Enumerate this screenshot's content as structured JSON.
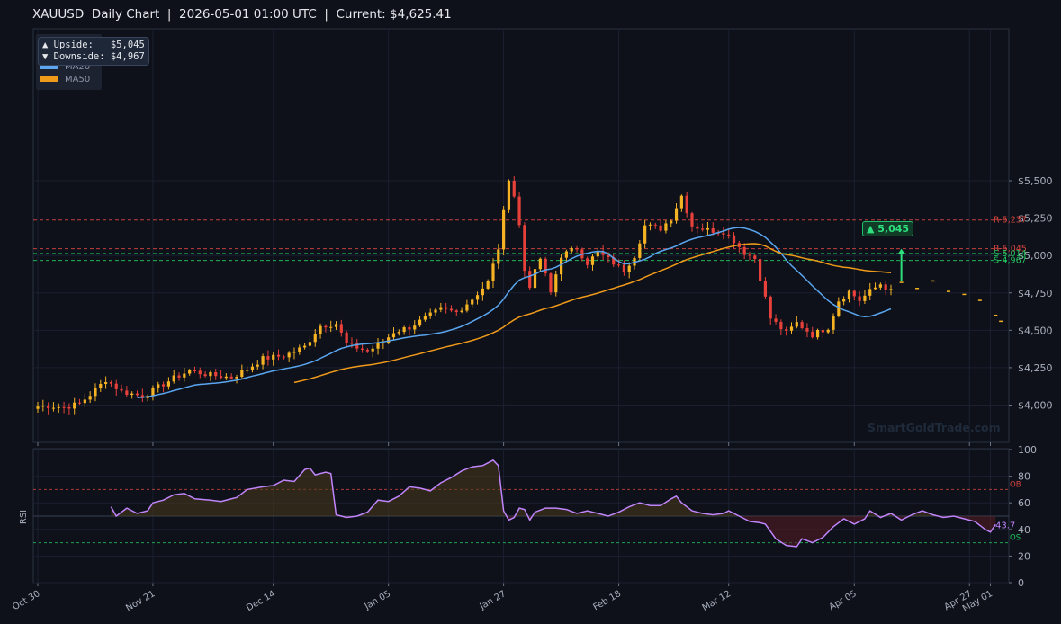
{
  "header": {
    "title": "XAUUSD  Daily Chart  |  2026-05-01 01:00 UTC  |  Current: $4,625.41"
  },
  "legend": {
    "ma20_label": "MA20",
    "ma50_label": "MA50"
  },
  "sr_box": {
    "upside": "▲ Upside:   $5,045",
    "downside": "▼ Downside: $4,967"
  },
  "watermark": "SmartGoldTrade.com",
  "target_badge": "▲ 5,045",
  "colors": {
    "bull": "#f5b324",
    "bear": "#e8403a",
    "ma20": "#5aa6f0",
    "ma50": "#f09a1a",
    "resistance": "#d6453f",
    "support": "#22c55e",
    "rsi": "#c084fc"
  },
  "chart_data": [
    {
      "type": "candlestick",
      "title": "XAUUSD Daily Chart",
      "ylabel": "",
      "ylim": [
        3830,
        5660
      ],
      "y_ticks": [
        4000,
        4250,
        4500,
        4750,
        5000,
        5250,
        5500
      ],
      "y_tick_labels": [
        "$4,000",
        "$4,250",
        "$4,500",
        "$4,750",
        "$5,000",
        "$5,250",
        "$5,500"
      ],
      "x_tick_labels": [
        "Oct 30",
        "Nov 21",
        "Dec 14",
        "Jan 05",
        "Jan 27",
        "Feb 18",
        "Mar 12",
        "Apr 05",
        "Apr 27",
        "May 01"
      ],
      "x_tick_days": [
        0,
        22,
        45,
        67,
        89,
        111,
        132,
        156,
        178,
        182
      ],
      "grid": true,
      "legend_position": "top-left",
      "levels": [
        {
          "label": "R-5,237",
          "value": 5237,
          "kind": "resistance"
        },
        {
          "label": "R-5,045",
          "value": 5045,
          "kind": "resistance"
        },
        {
          "label": "S-5,014",
          "value": 5014,
          "kind": "support"
        },
        {
          "label": "S-4,967",
          "value": 4967,
          "kind": "support"
        }
      ],
      "anchors": [
        [
          0,
          3990
        ],
        [
          2,
          3995
        ],
        [
          5,
          3985
        ],
        [
          8,
          4010
        ],
        [
          11,
          4100
        ],
        [
          13,
          4170
        ],
        [
          16,
          4090
        ],
        [
          20,
          4060
        ],
        [
          23,
          4120
        ],
        [
          26,
          4180
        ],
        [
          29,
          4230
        ],
        [
          33,
          4200
        ],
        [
          37,
          4185
        ],
        [
          40,
          4240
        ],
        [
          43,
          4310
        ],
        [
          47,
          4330
        ],
        [
          51,
          4390
        ],
        [
          54,
          4530
        ],
        [
          57,
          4545
        ],
        [
          59,
          4410
        ],
        [
          63,
          4360
        ],
        [
          66,
          4420
        ],
        [
          68,
          4490
        ],
        [
          71,
          4520
        ],
        [
          74,
          4580
        ],
        [
          77,
          4640
        ],
        [
          80,
          4620
        ],
        [
          83,
          4710
        ],
        [
          86,
          4820
        ],
        [
          88,
          5050
        ],
        [
          90,
          5520
        ],
        [
          91,
          5400
        ],
        [
          92,
          5200
        ],
        [
          93,
          4900
        ],
        [
          94,
          4800
        ],
        [
          96,
          4980
        ],
        [
          98,
          4750
        ],
        [
          100,
          5000
        ],
        [
          103,
          5050
        ],
        [
          105,
          4950
        ],
        [
          107,
          5020
        ],
        [
          110,
          4950
        ],
        [
          112,
          4900
        ],
        [
          114,
          5000
        ],
        [
          116,
          5200
        ],
        [
          119,
          5180
        ],
        [
          121,
          5250
        ],
        [
          123,
          5400
        ],
        [
          125,
          5200
        ],
        [
          128,
          5170
        ],
        [
          131,
          5160
        ],
        [
          133,
          5100
        ],
        [
          135,
          5020
        ],
        [
          137,
          4980
        ],
        [
          138,
          4850
        ],
        [
          140,
          4580
        ],
        [
          143,
          4480
        ],
        [
          145,
          4550
        ],
        [
          148,
          4470
        ],
        [
          151,
          4520
        ],
        [
          153,
          4700
        ],
        [
          155,
          4760
        ],
        [
          157,
          4700
        ],
        [
          159,
          4760
        ],
        [
          161,
          4810
        ],
        [
          163,
          4760
        ]
      ],
      "forecast": [
        [
          165,
          4820
        ],
        [
          168,
          4780
        ],
        [
          171,
          4830
        ],
        [
          174,
          4760
        ],
        [
          177,
          4740
        ],
        [
          180,
          4700
        ],
        [
          183,
          4600
        ],
        [
          184,
          4560
        ]
      ],
      "target": 5045,
      "current": 4625.41
    },
    {
      "type": "line",
      "ylabel": "RSI",
      "ylim": [
        0,
        100
      ],
      "y_ticks": [
        0,
        20,
        40,
        60,
        80,
        100
      ],
      "overbought": {
        "value": 70,
        "label": "OB"
      },
      "oversold": {
        "value": 30,
        "label": "OS"
      },
      "last_value": "43.7",
      "series": [
        {
          "name": "RSI",
          "values_at_day": [
            [
              14,
              57
            ],
            [
              15,
              50
            ],
            [
              17,
              56
            ],
            [
              19,
              52
            ],
            [
              21,
              54
            ],
            [
              22,
              60
            ],
            [
              24,
              62
            ],
            [
              26,
              66
            ],
            [
              28,
              67
            ],
            [
              30,
              63
            ],
            [
              33,
              62
            ],
            [
              35,
              61
            ],
            [
              38,
              64
            ],
            [
              40,
              70
            ],
            [
              43,
              72
            ],
            [
              45,
              73
            ],
            [
              47,
              77
            ],
            [
              49,
              76
            ],
            [
              51,
              85
            ],
            [
              52,
              86
            ],
            [
              53,
              81
            ],
            [
              55,
              83
            ],
            [
              56,
              82
            ],
            [
              57,
              51
            ],
            [
              59,
              49
            ],
            [
              61,
              50
            ],
            [
              63,
              53
            ],
            [
              65,
              62
            ],
            [
              67,
              61
            ],
            [
              69,
              65
            ],
            [
              71,
              72
            ],
            [
              73,
              71
            ],
            [
              75,
              69
            ],
            [
              77,
              75
            ],
            [
              79,
              79
            ],
            [
              81,
              84
            ],
            [
              83,
              87
            ],
            [
              85,
              88
            ],
            [
              87,
              92
            ],
            [
              88,
              88
            ],
            [
              89,
              54
            ],
            [
              90,
              47
            ],
            [
              91,
              49
            ],
            [
              92,
              56
            ],
            [
              93,
              55
            ],
            [
              94,
              47
            ],
            [
              95,
              53
            ],
            [
              97,
              56
            ],
            [
              99,
              56
            ],
            [
              101,
              55
            ],
            [
              103,
              52
            ],
            [
              105,
              54
            ],
            [
              107,
              52
            ],
            [
              109,
              50
            ],
            [
              111,
              53
            ],
            [
              113,
              57
            ],
            [
              115,
              60
            ],
            [
              117,
              58
            ],
            [
              119,
              58
            ],
            [
              121,
              63
            ],
            [
              122,
              65
            ],
            [
              123,
              60
            ],
            [
              125,
              54
            ],
            [
              127,
              52
            ],
            [
              129,
              51
            ],
            [
              131,
              52
            ],
            [
              132,
              54
            ],
            [
              134,
              50
            ],
            [
              136,
              46
            ],
            [
              138,
              45
            ],
            [
              139,
              44
            ],
            [
              141,
              33
            ],
            [
              143,
              28
            ],
            [
              145,
              27
            ],
            [
              146,
              33
            ],
            [
              148,
              30
            ],
            [
              150,
              34
            ],
            [
              152,
              42
            ],
            [
              154,
              48
            ],
            [
              156,
              44
            ],
            [
              158,
              48
            ],
            [
              159,
              54
            ],
            [
              161,
              49
            ],
            [
              163,
              52
            ],
            [
              165,
              47
            ],
            [
              167,
              51
            ],
            [
              169,
              54
            ],
            [
              171,
              51
            ],
            [
              173,
              49
            ],
            [
              175,
              50
            ],
            [
              177,
              48
            ],
            [
              179,
              46
            ],
            [
              181,
              40
            ],
            [
              182,
              38
            ],
            [
              183,
              43.7
            ]
          ]
        }
      ]
    }
  ]
}
